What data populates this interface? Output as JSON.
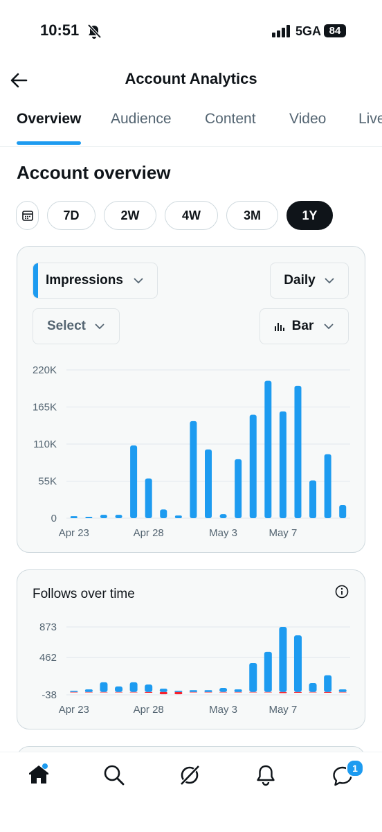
{
  "status": {
    "time": "10:51",
    "network": "5GA",
    "battery": "84"
  },
  "header": {
    "title": "Account Analytics"
  },
  "tabs": [
    "Overview",
    "Audience",
    "Content",
    "Video",
    "Live"
  ],
  "section_title": "Account overview",
  "ranges": [
    "7D",
    "2W",
    "4W",
    "3M",
    "1Y"
  ],
  "impressions_card": {
    "metric": "Impressions",
    "interval": "Daily",
    "compare": "Select",
    "chart_style": "Bar"
  },
  "follows_card": {
    "title": "Follows over time"
  },
  "nav": {
    "messages_badge": "1"
  },
  "chart_data": [
    {
      "type": "bar",
      "categories": [
        "Apr 23",
        null,
        null,
        null,
        null,
        "Apr 28",
        null,
        null,
        null,
        null,
        "May 3",
        null,
        null,
        null,
        "May 7",
        null,
        null,
        null,
        null
      ],
      "values": [
        3000,
        2000,
        5000,
        5000,
        108000,
        59000,
        13000,
        4000,
        144000,
        102000,
        6000,
        87500,
        153500,
        204000,
        158500,
        196500,
        56000,
        95000,
        19500
      ],
      "color": "#1d9bf0",
      "ylim": [
        0,
        220000
      ],
      "yticks": [
        0,
        {
          "value": 55000,
          "label": "55K"
        },
        {
          "value": 110000,
          "label": "110K"
        },
        {
          "value": 165000,
          "label": "165K"
        },
        {
          "value": 220000,
          "label": "220K"
        }
      ],
      "grid": true
    },
    {
      "type": "bar",
      "categories": [
        "Apr 23",
        null,
        null,
        null,
        null,
        "Apr 28",
        null,
        null,
        null,
        null,
        "May 3",
        null,
        null,
        null,
        "May 7",
        null,
        null,
        null,
        null
      ],
      "series": [
        {
          "color": "#1d9bf0",
          "values": [
            15,
            35,
            130,
            75,
            130,
            100,
            45,
            15,
            25,
            25,
            55,
            35,
            390,
            540,
            873,
            760,
            120,
            225,
            35
          ]
        },
        {
          "color": "#f4212e",
          "values": [
            -5,
            -5,
            -5,
            -5,
            -5,
            -10,
            -30,
            -30,
            -5,
            -5,
            -5,
            -5,
            -5,
            -5,
            -15,
            -10,
            -5,
            -10,
            -5
          ]
        }
      ],
      "ylim": [
        -38,
        873
      ],
      "yticks": [
        -38,
        462,
        873
      ],
      "grid": true
    }
  ]
}
